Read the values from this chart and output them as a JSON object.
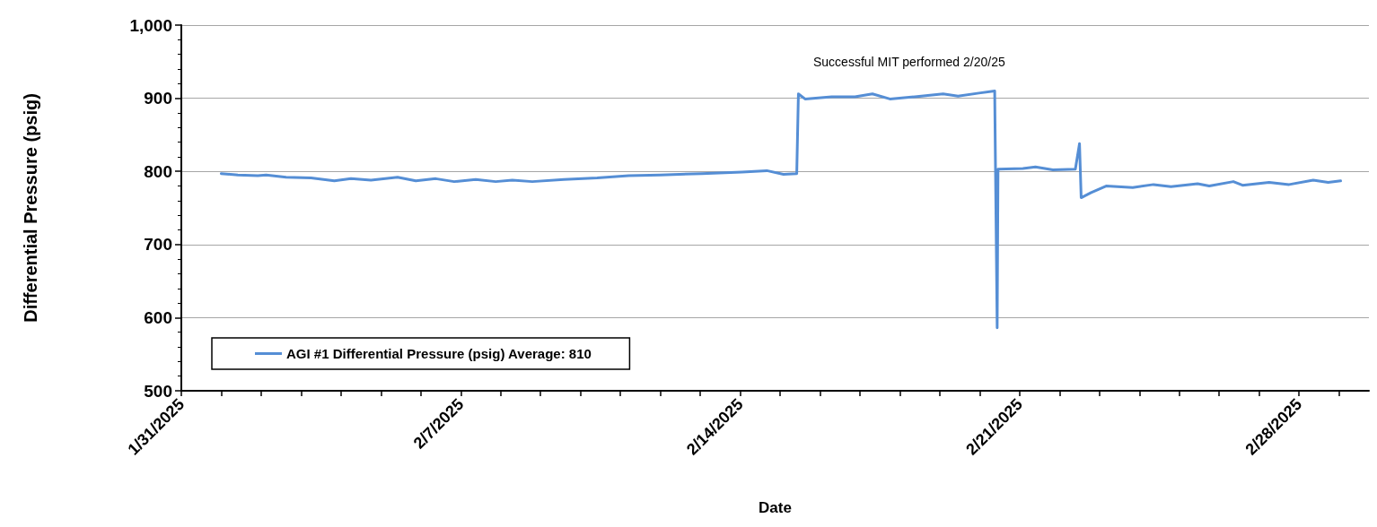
{
  "chart_data": {
    "type": "line",
    "xlabel": "Date",
    "ylabel": "Differential Pressure (psig)",
    "annotations": [
      "Successful MIT performed 2/20/25"
    ],
    "xlim": [
      "2025-01-31",
      "2025-03-01T18:00"
    ],
    "xticks": [
      {
        "value": "2025-01-31",
        "label": "1/31/2025"
      },
      {
        "value": "2025-02-01",
        "label": null
      },
      {
        "value": "2025-02-02",
        "label": null
      },
      {
        "value": "2025-02-03",
        "label": null
      },
      {
        "value": "2025-02-04",
        "label": null
      },
      {
        "value": "2025-02-05",
        "label": null
      },
      {
        "value": "2025-02-06",
        "label": null
      },
      {
        "value": "2025-02-07",
        "label": "2/7/2025"
      },
      {
        "value": "2025-02-08",
        "label": null
      },
      {
        "value": "2025-02-09",
        "label": null
      },
      {
        "value": "2025-02-10",
        "label": null
      },
      {
        "value": "2025-02-11",
        "label": null
      },
      {
        "value": "2025-02-12",
        "label": null
      },
      {
        "value": "2025-02-13",
        "label": null
      },
      {
        "value": "2025-02-14",
        "label": "2/14/2025"
      },
      {
        "value": "2025-02-15",
        "label": null
      },
      {
        "value": "2025-02-16",
        "label": null
      },
      {
        "value": "2025-02-17",
        "label": null
      },
      {
        "value": "2025-02-18",
        "label": null
      },
      {
        "value": "2025-02-19",
        "label": null
      },
      {
        "value": "2025-02-20",
        "label": null
      },
      {
        "value": "2025-02-21",
        "label": "2/21/2025"
      },
      {
        "value": "2025-02-22",
        "label": null
      },
      {
        "value": "2025-02-23",
        "label": null
      },
      {
        "value": "2025-02-24",
        "label": null
      },
      {
        "value": "2025-02-25",
        "label": null
      },
      {
        "value": "2025-02-26",
        "label": null
      },
      {
        "value": "2025-02-27",
        "label": null
      },
      {
        "value": "2025-02-28",
        "label": "2/28/2025"
      },
      {
        "value": "2025-03-01",
        "label": null
      }
    ],
    "ylim": [
      500,
      1000
    ],
    "yticks": [
      500,
      600,
      700,
      800,
      900,
      {
        "value": 1000,
        "label": "1,000"
      }
    ],
    "grid": "y",
    "legend": "bottom left",
    "marker": "none",
    "line_style": "solid",
    "series": [
      {
        "name": "AGI #1 Differential Pressure (psig) Average: 810",
        "color": "#558ed5",
        "x": [
          "2025-02-01T00:00",
          "2025-02-01T10:00",
          "2025-02-01T22:00",
          "2025-02-02T03:00",
          "2025-02-02T15:00",
          "2025-02-03T06:00",
          "2025-02-03T20:00",
          "2025-02-04T06:00",
          "2025-02-04T18:00",
          "2025-02-05T10:00",
          "2025-02-05T21:00",
          "2025-02-06T09:00",
          "2025-02-06T20:00",
          "2025-02-07T09:00",
          "2025-02-07T21:00",
          "2025-02-08T07:00",
          "2025-02-08T19:00",
          "2025-02-09T14:00",
          "2025-02-10T10:00",
          "2025-02-11T05:00",
          "2025-02-12T00:00",
          "2025-02-13T01:00",
          "2025-02-14T01:00",
          "2025-02-14T16:00",
          "2025-02-15T02:00",
          "2025-02-15T10:00",
          "2025-02-15T11:00",
          "2025-02-15T15:00",
          "2025-02-16T07:00",
          "2025-02-16T21:00",
          "2025-02-17T07:30",
          "2025-02-17T18:00",
          "2025-02-18T09:00",
          "2025-02-19T02:00",
          "2025-02-19T11:00",
          "2025-02-19T23:30",
          "2025-02-20T09:00",
          "2025-02-20T10:30",
          "2025-02-20T11:00",
          "2025-02-21T02:00",
          "2025-02-21T09:30",
          "2025-02-21T20:00",
          "2025-02-22T09:30",
          "2025-02-22T12:00",
          "2025-02-22T13:00",
          "2025-02-22T19:00",
          "2025-02-23T04:00",
          "2025-02-23T20:00",
          "2025-02-24T08:30",
          "2025-02-24T19:00",
          "2025-02-25T11:00",
          "2025-02-25T18:00",
          "2025-02-26T08:30",
          "2025-02-26T14:00",
          "2025-02-27T06:00",
          "2025-02-27T18:00",
          "2025-02-28T08:30",
          "2025-02-28T17:30",
          "2025-03-01T01:00"
        ],
        "values": [
          797,
          795,
          794,
          795,
          792,
          791,
          787,
          790,
          788,
          792,
          787,
          790,
          786,
          789,
          786,
          788,
          786,
          789,
          791,
          794,
          795,
          797,
          799,
          801,
          796,
          797,
          906,
          899,
          902,
          902,
          906,
          899,
          902,
          906,
          903,
          907,
          910,
          586,
          803,
          804,
          806,
          802,
          803,
          838,
          764,
          771,
          780,
          778,
          782,
          779,
          783,
          780,
          786,
          781,
          785,
          782,
          788,
          785,
          787
        ]
      }
    ]
  }
}
